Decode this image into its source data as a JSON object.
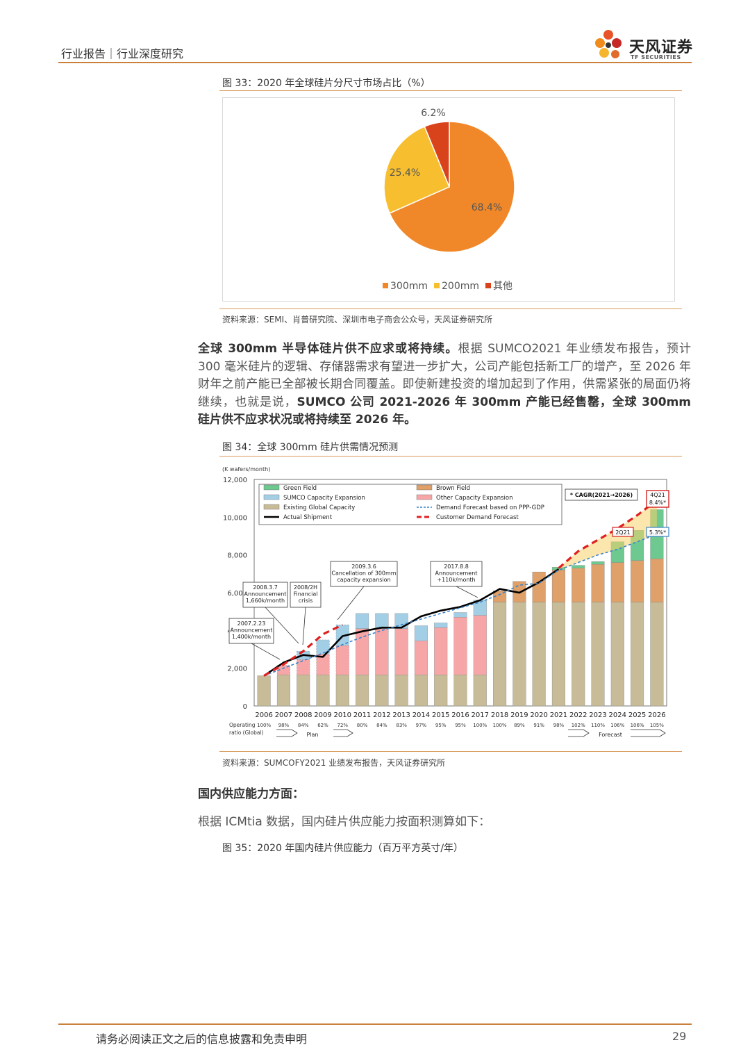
{
  "header": {
    "title": "行业报告｜行业深度研究",
    "logo_cn": "天风证券",
    "logo_en": "TF SECURITIES"
  },
  "figure33": {
    "title": "图 33：2020 年全球硅片分尺寸市场占比（%）",
    "source": "资料来源：SEMI、肖普研究院、深圳市电子商会公众号，天风证券研究所"
  },
  "paragraph": {
    "bold1": "全球 300mm 半导体硅片供不应求或将持续。",
    "text1": "根据 SUMCO2021 年业绩发布报告，预计 300 毫米硅片的逻辑、存储器需求有望进一步扩大，公司产能包括新工厂的增产，至 2026 年财年之前产能已全部被长期合同覆盖。即使新建投资的增加起到了作用，供需紧张的局面仍将继续，也就是说，",
    "bold2": "SUMCO 公司 2021-2026 年 300mm 产能已经售罄，全球 300mm 硅片供不应求状况或将持续至 2026 年。"
  },
  "figure34": {
    "title": "图 34：全球 300mm 硅片供需情况预测",
    "source": "资料来源：SUMCOFY2021 业绩发布报告，天风证券研究所"
  },
  "section": {
    "heading": "国内供应能力方面：",
    "line": "根据 ICMtia 数据，国内硅片供应能力按面积测算如下："
  },
  "figure35": {
    "title": "图 35：2020 年国内硅片供应能力（百万平方英寸/年）"
  },
  "footer": {
    "disclaimer": "请务必阅读正文之后的信息披露和免责申明",
    "page": "29"
  },
  "chart_data": [
    {
      "type": "pie",
      "labels": [
        "300mm",
        "200mm",
        "其他"
      ],
      "values": [
        68.4,
        25.4,
        6.2
      ],
      "value_labels": [
        "68.4%",
        "25.4%",
        "6.2%"
      ],
      "colors": [
        "#f0882a",
        "#f7bf2f",
        "#d8431c"
      ],
      "legend": "bottom"
    },
    {
      "type": "bar",
      "ylabel": "(K wafers/month)",
      "ylim": [
        0,
        12000
      ],
      "yticks": [
        "0",
        "2,000",
        "4,000",
        "6,000",
        "8,000",
        "10,000",
        "12,000"
      ],
      "categories": [
        "2006",
        "2007",
        "2008",
        "2009",
        "2010",
        "2011",
        "2012",
        "2013",
        "2014",
        "2015",
        "2016",
        "2017",
        "2018",
        "2019",
        "2020",
        "2021",
        "2022",
        "2023",
        "2024",
        "2025",
        "2026"
      ],
      "operating_ratio_label": "Operating ratio (Global)",
      "operating_ratio": [
        "100%",
        "98%",
        "84%",
        "62%",
        "72%",
        "80%",
        "84%",
        "83%",
        "97%",
        "95%",
        "95%",
        "100%",
        "100%",
        "89%",
        "91%",
        "98%",
        "102%",
        "110%",
        "106%",
        "106%",
        "105%"
      ],
      "series": [
        {
          "name": "Existing Global Capacity",
          "color": "#c7bc97",
          "values": [
            1600,
            1650,
            1650,
            1650,
            1650,
            1650,
            1650,
            1650,
            1650,
            1650,
            1650,
            1650,
            5500,
            5500,
            5500,
            5500,
            5500,
            5500,
            5500,
            5500,
            5500
          ]
        },
        {
          "name": "Other Capacity Expansion",
          "color": "#f7a6a8",
          "values": [
            0,
            500,
            800,
            1100,
            1550,
            2450,
            2450,
            2450,
            1800,
            2500,
            3050,
            3150,
            0,
            0,
            0,
            0,
            0,
            0,
            0,
            0,
            0
          ]
        },
        {
          "name": "SUMCO Capacity Expansion",
          "color": "#a3cfe6",
          "values": [
            0,
            0,
            450,
            750,
            1100,
            800,
            800,
            800,
            800,
            250,
            250,
            800,
            0,
            0,
            0,
            0,
            0,
            0,
            0,
            0,
            0
          ]
        },
        {
          "name": "Brown Field",
          "color": "#dfa06a",
          "values": [
            0,
            0,
            0,
            0,
            0,
            0,
            0,
            0,
            0,
            0,
            0,
            0,
            600,
            1100,
            1600,
            1700,
            1800,
            2000,
            2100,
            2200,
            2300
          ]
        },
        {
          "name": "Green Field",
          "color": "#6dc990",
          "values": [
            0,
            0,
            0,
            0,
            0,
            0,
            0,
            0,
            0,
            0,
            0,
            0,
            0,
            0,
            0,
            150,
            150,
            150,
            1100,
            1600,
            2600
          ]
        }
      ],
      "lines": [
        {
          "name": "Actual Shipment",
          "color": "#000000",
          "values": [
            1600,
            2300,
            2700,
            2600,
            3700,
            3950,
            4150,
            4150,
            4750,
            5050,
            5250,
            5600,
            6200,
            6000,
            6550,
            7250,
            null,
            null,
            null,
            null,
            null
          ]
        },
        {
          "name": "Demand Forecast based on PPP-GDP",
          "color": "#3a83c7",
          "values": [
            1600,
            2000,
            2400,
            2800,
            3250,
            3650,
            4000,
            4300,
            4600,
            4900,
            5200,
            5500,
            5900,
            6400,
            6500,
            7200,
            7600,
            8000,
            8300,
            8700,
            9100
          ]
        },
        {
          "name": "Customer Demand Forecast",
          "color": "#e02020",
          "values": [
            1600,
            2200,
            2900,
            3800,
            4300,
            null,
            null,
            null,
            null,
            null,
            null,
            null,
            null,
            null,
            null,
            7300,
            8200,
            8800,
            9400,
            10100,
            10900
          ]
        }
      ],
      "annotations": [
        "2007.2.23 Announcement 1,400k/month",
        "2008.3.7 Announcement 1,660k/month",
        "2008/2H Financial crisis",
        "2009.3.6 Cancellation of 300mm capacity expansion",
        "2017.8.8 Announcement +110k/month",
        "* CAGR(2021→2026)",
        "4Q21 8.4%*",
        "2Q21",
        "5.3%*",
        "Plan",
        "Forecast"
      ],
      "legend": "top-left"
    }
  ]
}
